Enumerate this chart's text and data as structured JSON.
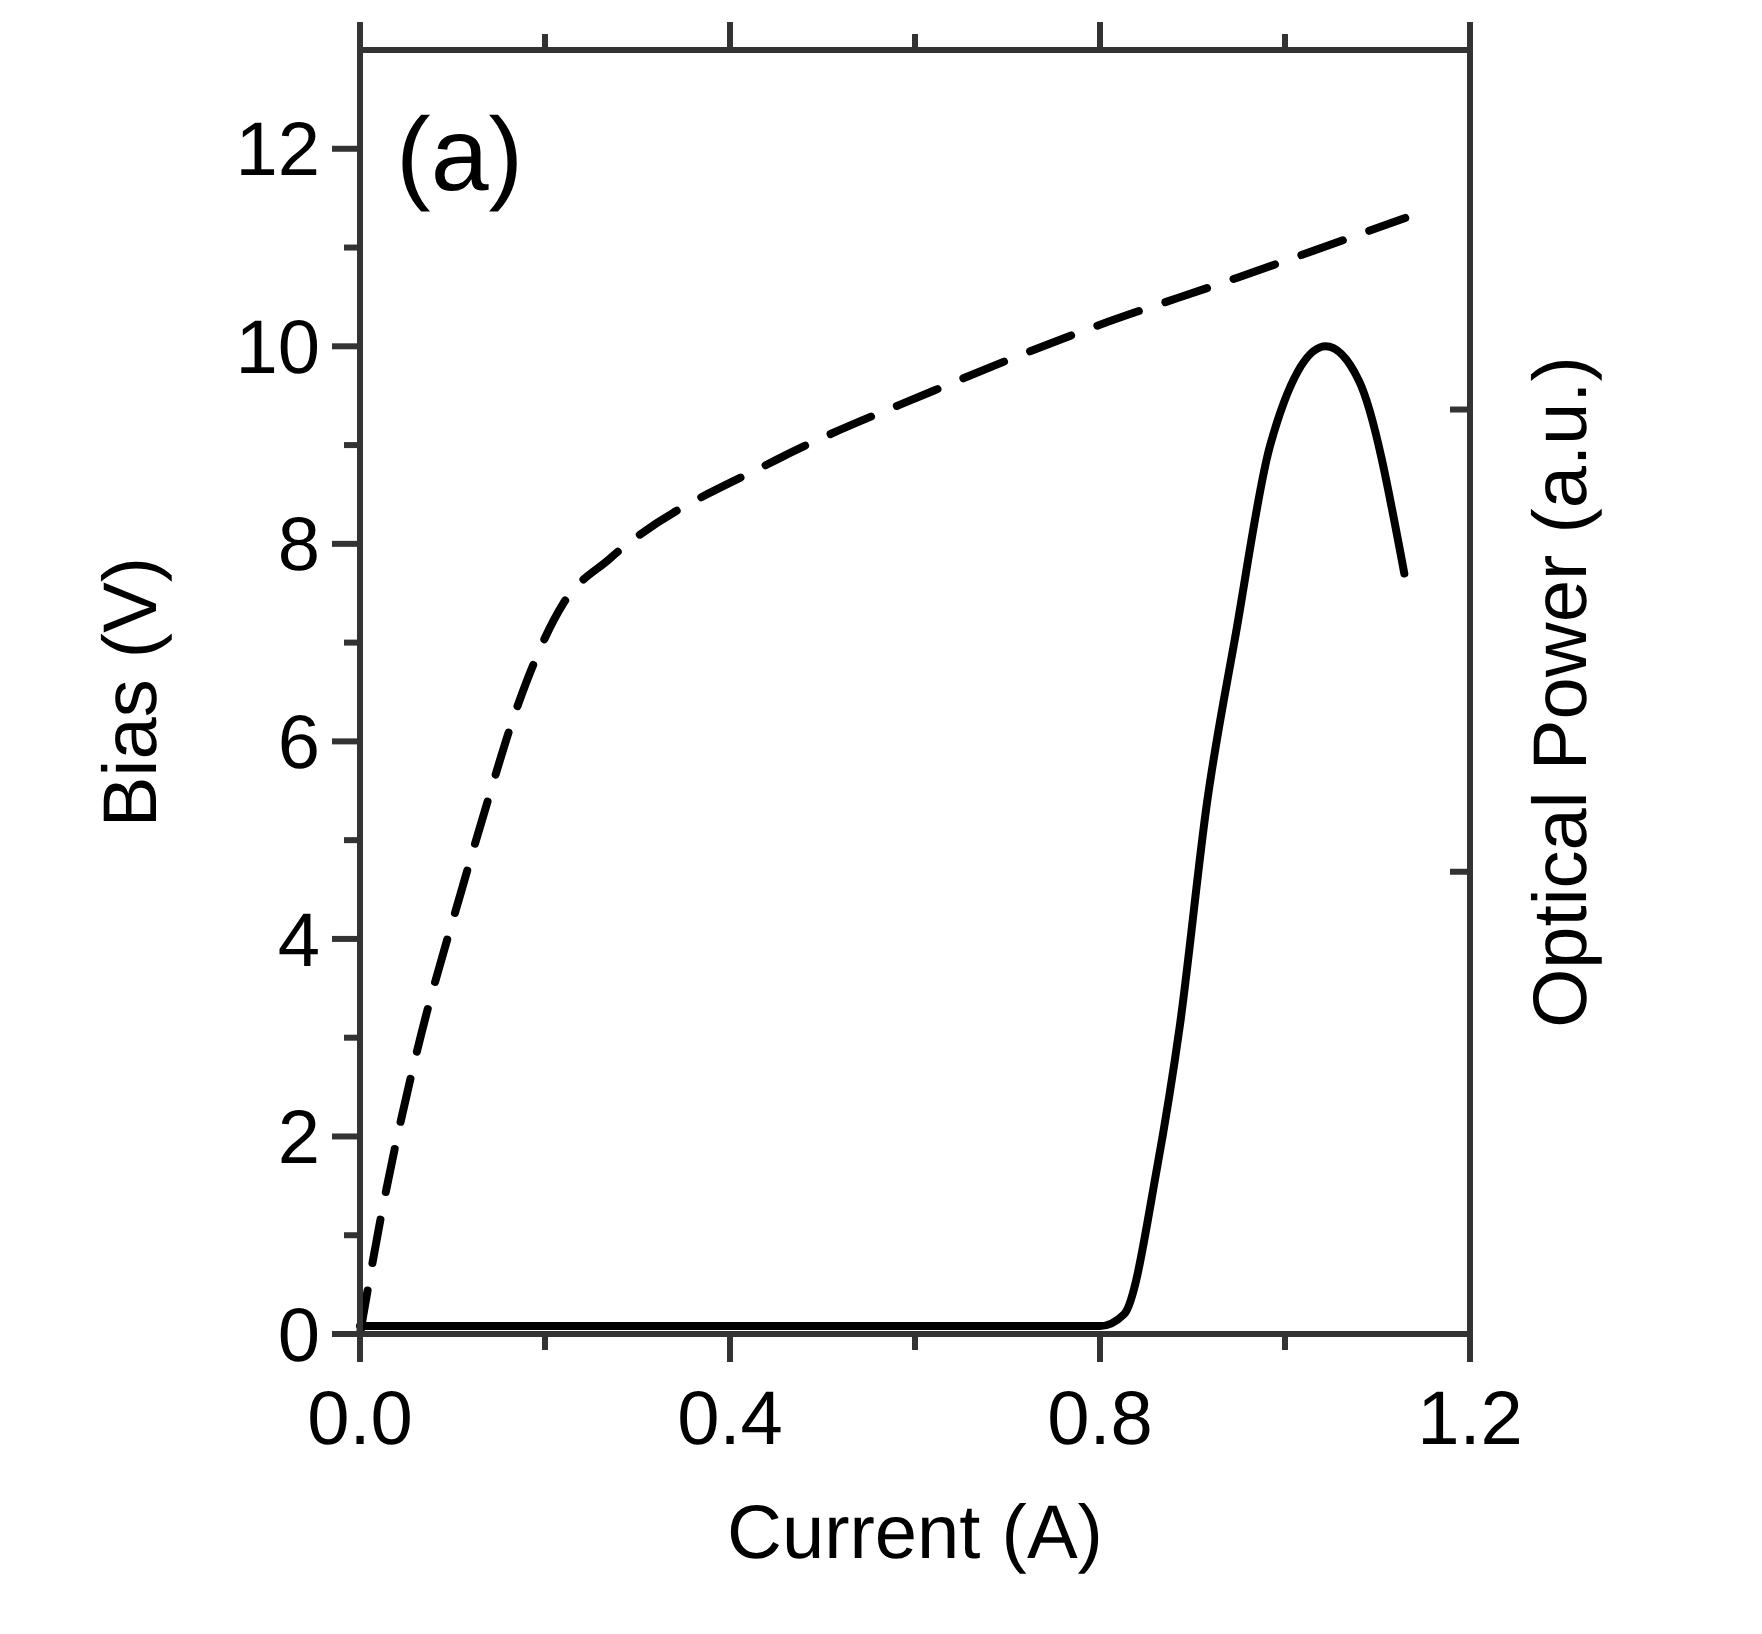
{
  "chart_data": {
    "type": "line",
    "xlabel": "Current (A)",
    "ylabel": "Bias (V)",
    "y2label": "Optical Power (a.u.)",
    "annotations": [
      "(a)"
    ],
    "xlim": [
      0,
      1.2
    ],
    "xticks": [
      {
        "value": 0,
        "label": "0.0"
      },
      {
        "value": 0.2,
        "label": null
      },
      0.4,
      {
        "value": 0.6,
        "label": null
      },
      0.8,
      {
        "value": 1.0,
        "label": null
      },
      1.2
    ],
    "ylim": [
      0,
      13
    ],
    "yticks": [
      0,
      {
        "value": 1,
        "label": null
      },
      2,
      {
        "value": 3,
        "label": null
      },
      4,
      {
        "value": 5,
        "label": null
      },
      6,
      {
        "value": 7,
        "label": null
      },
      8,
      {
        "value": 9,
        "label": null
      },
      10,
      {
        "value": 11,
        "label": null
      },
      12
    ],
    "series": [
      {
        "color": "#000000",
        "line_style": "dashed",
        "x": [
          0,
          0.025,
          0.06,
          0.11,
          0.135,
          0.17,
          0.22,
          0.27,
          0.45,
          0.62,
          0.78,
          0.95,
          1.13
        ],
        "values": [
          0,
          1.3,
          2.8,
          4.5,
          5.3,
          6.35,
          7.4,
          7.85,
          8.85,
          9.55,
          10.15,
          10.7,
          11.3
        ]
      },
      {
        "color": "#000000",
        "line_style": "solid",
        "x": [
          0,
          0.8,
          0.826,
          0.862,
          0.886,
          0.916,
          0.947,
          0.984,
          1.044,
          1.08,
          1.129
        ],
        "values": [
          0.08,
          0.08,
          0.2,
          1.7,
          3.1,
          5.4,
          7.1,
          9.0,
          10.0,
          9.65,
          7.7
        ]
      }
    ]
  }
}
